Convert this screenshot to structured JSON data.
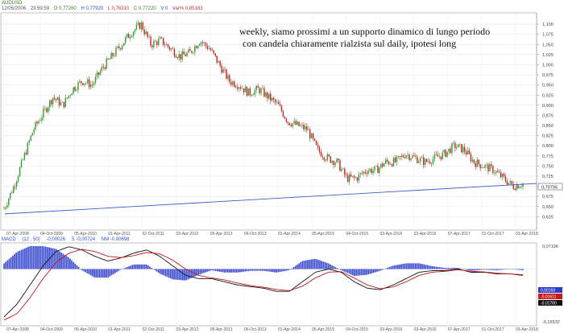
{
  "header": {
    "symbol": "AUDUSD",
    "date": "12/05/2006",
    "time": "23:59:59",
    "open": "O 0,77260",
    "high": "H 0,77920",
    "low": "L 0,76310",
    "close": "C 0,77220",
    "volume": "V 0",
    "var": "Var% 0,85183"
  },
  "annotation": {
    "line1": "weekly, siamo prossimi a un supporto dinamico di lungo periodo",
    "line2": "con candela chiaramente rialzista sul daily, ipotesi long"
  },
  "price_badge": "0,70795",
  "macd_header": {
    "name": "MACD",
    "params": "(12 , 50)",
    "value": "-0,00026",
    "signal": "S -0,00724",
    "hist": "NM -0,00698"
  },
  "macd_badges": [
    "0,00169",
    "-0,01611",
    "-0,01780"
  ],
  "chart_data": [
    {
      "type": "line",
      "series_style": "candlestick",
      "ylim": [
        0.6,
        1.12
      ],
      "y_ticks": [
        "1,100",
        "1,075",
        "1,050",
        "1,025",
        "1,000",
        "0,975",
        "0,950",
        "0,925",
        "0,900",
        "0,875",
        "0,850",
        "0,825",
        "0,800",
        "0,775",
        "0,750",
        "0,725",
        "0,700",
        "0,675",
        "0,650",
        "0,625"
      ],
      "x_ticks": [
        "07-Apr-2008",
        "04-Oct-2009",
        "05-Apr-2010",
        "01-Apr-2011",
        "02-Oct-2011",
        "03-Apr-2012",
        "05-Apr-2013",
        "06-Oct-2013",
        "01-Apr-2014",
        "05-Apr-2015",
        "04-Oct-2015",
        "03-Apr-2016",
        "03-Apr-2016",
        "07-Apr-2017",
        "01-Oct-2017",
        "03-Apr-2018"
      ],
      "close": [
        0.645,
        0.7,
        0.77,
        0.84,
        0.88,
        0.92,
        0.9,
        0.94,
        0.96,
        0.95,
        0.99,
        1.02,
        1.05,
        1.08,
        1.1,
        1.05,
        1.06,
        1.04,
        1.02,
        1.03,
        1.06,
        1.04,
        1.0,
        0.96,
        0.95,
        0.93,
        0.94,
        0.92,
        0.9,
        0.86,
        0.85,
        0.84,
        0.79,
        0.77,
        0.76,
        0.72,
        0.72,
        0.74,
        0.74,
        0.76,
        0.76,
        0.78,
        0.77,
        0.76,
        0.77,
        0.78,
        0.8,
        0.79,
        0.76,
        0.75,
        0.74,
        0.72,
        0.7,
        0.707
      ],
      "trendline": {
        "start": 0.632,
        "end": 0.707
      }
    },
    {
      "type": "line",
      "ylim": [
        -0.1653,
        0.0719
      ],
      "y_ticks": [
        "0,07196",
        "-0,16532"
      ],
      "x_ticks": [
        "07-Apr-2008",
        "04-Oct-2009",
        "05-Apr-2010",
        "01-Apr-2011",
        "02-Oct-2011",
        "03-Apr-2012",
        "05-Apr-2013",
        "06-Oct-2013",
        "01-Apr-2014",
        "05-Apr-2015",
        "04-Oct-2015",
        "03-Apr-2016",
        "03-Apr-2016",
        "07-Apr-2017",
        "01-Oct-2017",
        "03-Apr-2018"
      ],
      "macd": [
        -0.15,
        -0.11,
        -0.05,
        0.01,
        0.055,
        0.07,
        0.06,
        0.04,
        0.025,
        0.035,
        0.05,
        0.06,
        0.04,
        0.01,
        -0.02,
        -0.03,
        -0.03,
        -0.04,
        -0.05,
        -0.055,
        -0.06,
        -0.07,
        -0.07,
        -0.04,
        -0.01,
        0.0,
        -0.01,
        -0.04,
        -0.06,
        -0.065,
        -0.05,
        -0.03,
        -0.01,
        -0.005,
        -0.005,
        0.0,
        -0.01,
        -0.01,
        -0.015,
        -0.015,
        -0.02
      ],
      "signal": [
        -0.16,
        -0.14,
        -0.09,
        -0.03,
        0.02,
        0.05,
        0.062,
        0.055,
        0.04,
        0.036,
        0.042,
        0.052,
        0.048,
        0.028,
        0.0,
        -0.02,
        -0.028,
        -0.034,
        -0.044,
        -0.052,
        -0.057,
        -0.064,
        -0.068,
        -0.054,
        -0.028,
        -0.01,
        -0.008,
        -0.028,
        -0.05,
        -0.062,
        -0.056,
        -0.04,
        -0.02,
        -0.01,
        -0.007,
        -0.002,
        -0.007,
        -0.009,
        -0.013,
        -0.015,
        -0.018
      ]
    }
  ]
}
